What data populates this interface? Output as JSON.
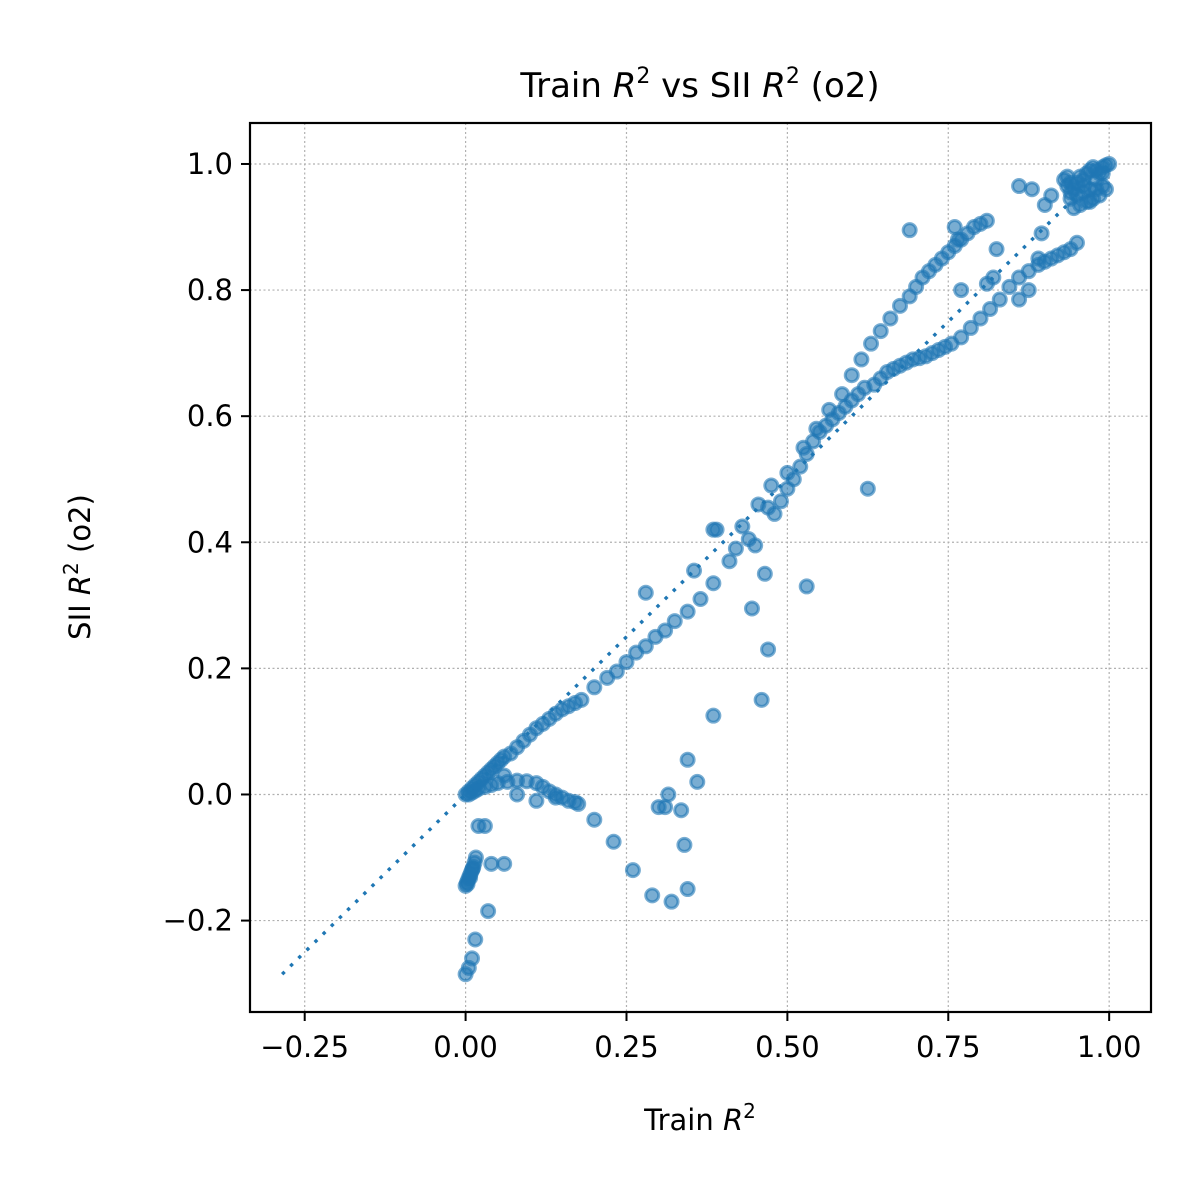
{
  "chart_data": {
    "type": "scatter",
    "title_prefix": "Train ",
    "title_var": "R",
    "title_sup": "2",
    "title_mid": " vs SII ",
    "title_suffix": " (o2)",
    "xlabel_prefix": "Train ",
    "xlabel_var": "R",
    "xlabel_sup": "2",
    "ylabel_prefix": "SII ",
    "ylabel_var": "R",
    "ylabel_sup": "2",
    "ylabel_suffix": " (o2)",
    "xlim": [
      -0.335,
      1.065
    ],
    "ylim": [
      -0.345,
      1.065
    ],
    "xticks": [
      -0.25,
      0.0,
      0.25,
      0.5,
      0.75,
      1.0
    ],
    "xtick_labels": [
      "−0.25",
      "0.00",
      "0.25",
      "0.50",
      "0.75",
      "1.00"
    ],
    "yticks": [
      -0.2,
      0.0,
      0.2,
      0.4,
      0.6,
      0.8,
      1.0
    ],
    "ytick_labels": [
      "−0.2",
      "0.0",
      "0.2",
      "0.4",
      "0.6",
      "0.8",
      "1.0"
    ],
    "grid": true,
    "reference_line": {
      "x": [
        -0.285,
        1.0
      ],
      "y": [
        -0.285,
        1.0
      ]
    },
    "color": "#1f77b4",
    "series": [
      {
        "x": [
          0.0,
          0.005,
          0.01,
          0.015,
          0.02,
          0.025,
          0.03,
          0.035,
          0.04,
          0.045,
          0.05,
          0.055,
          0.06,
          0.07,
          0.08,
          0.09,
          0.1,
          0.11,
          0.12,
          0.13,
          0.14,
          0.15,
          0.16,
          0.17,
          0.18,
          0.2,
          0.22,
          0.235,
          0.25,
          0.265,
          0.28,
          0.295,
          0.31,
          0.325,
          0.345,
          0.365,
          0.385,
          0.41,
          0.44,
          0.47,
          0.5,
          0.525,
          0.545,
          0.565,
          0.585,
          0.6,
          0.615,
          0.63,
          0.645,
          0.66,
          0.675,
          0.69,
          0.7,
          0.71,
          0.72,
          0.73,
          0.74,
          0.75,
          0.76,
          0.77,
          0.78,
          0.79,
          0.8,
          0.81,
          0.635,
          0.645,
          0.655,
          0.665,
          0.675,
          0.685,
          0.695,
          0.705,
          0.715,
          0.725,
          0.735,
          0.745,
          0.755,
          0.77,
          0.785,
          0.8,
          0.815,
          0.83,
          0.845,
          0.86,
          0.875,
          0.89,
          0.9,
          0.91,
          0.92,
          0.93,
          0.94,
          0.95,
          0.005,
          0.01,
          0.015,
          0.02,
          0.03,
          0.04,
          0.05,
          0.065,
          0.08,
          0.095,
          0.11,
          0.12,
          0.13,
          0.14,
          0.15,
          0.16,
          0.17,
          0.175,
          0.48,
          0.49,
          0.5,
          0.51,
          0.52,
          0.53,
          0.54,
          0.55,
          0.56,
          0.57,
          0.58,
          0.59,
          0.6,
          0.61,
          0.62,
          0.02,
          0.04,
          0.06,
          0.08,
          0.11,
          0.14,
          0.2,
          0.23,
          0.26,
          0.29,
          0.32,
          0.345,
          0.0,
          0.002,
          0.004,
          0.006,
          0.008,
          0.01,
          0.012,
          0.014,
          0.016,
          0.003,
          0.007,
          0.011,
          0.0,
          0.005,
          0.01,
          0.015,
          0.035,
          0.06,
          0.03,
          0.28,
          0.39,
          0.385,
          0.43,
          0.455,
          0.46,
          0.475,
          0.53,
          0.625,
          0.42,
          0.445,
          0.465,
          0.47,
          0.45,
          0.385,
          0.355,
          0.36,
          0.345,
          0.315,
          0.3,
          0.31,
          0.335,
          0.34,
          0.69,
          0.765,
          0.76,
          0.77,
          0.81,
          0.825,
          0.86,
          0.875,
          0.89,
          0.895,
          0.9,
          0.88,
          0.91,
          0.86,
          0.82,
          0.93,
          0.935,
          0.94,
          0.945,
          0.95,
          0.955,
          0.96,
          0.965,
          0.97,
          0.975,
          0.98,
          0.985,
          0.99,
          0.995,
          1.0,
          0.94,
          0.95,
          0.96,
          0.97,
          0.98,
          0.99,
          0.945,
          0.955,
          0.965,
          0.975,
          0.985,
          0.995,
          0.935,
          0.94,
          0.96,
          0.98,
          0.99,
          0.97
        ],
        "y": [
          0.0,
          0.005,
          0.01,
          0.015,
          0.02,
          0.025,
          0.03,
          0.035,
          0.04,
          0.045,
          0.05,
          0.055,
          0.06,
          0.065,
          0.075,
          0.085,
          0.095,
          0.105,
          0.112,
          0.12,
          0.128,
          0.135,
          0.14,
          0.145,
          0.15,
          0.17,
          0.185,
          0.195,
          0.21,
          0.225,
          0.235,
          0.25,
          0.26,
          0.275,
          0.29,
          0.31,
          0.335,
          0.37,
          0.405,
          0.455,
          0.51,
          0.55,
          0.58,
          0.61,
          0.635,
          0.665,
          0.69,
          0.715,
          0.735,
          0.755,
          0.775,
          0.79,
          0.805,
          0.82,
          0.83,
          0.84,
          0.85,
          0.86,
          0.87,
          0.88,
          0.89,
          0.9,
          0.905,
          0.91,
          0.65,
          0.66,
          0.67,
          0.675,
          0.68,
          0.685,
          0.69,
          0.692,
          0.695,
          0.7,
          0.705,
          0.71,
          0.715,
          0.725,
          0.74,
          0.755,
          0.77,
          0.785,
          0.805,
          0.82,
          0.83,
          0.84,
          0.845,
          0.85,
          0.855,
          0.86,
          0.865,
          0.875,
          0.0,
          0.003,
          0.006,
          0.009,
          0.012,
          0.015,
          0.018,
          0.02,
          0.022,
          0.021,
          0.018,
          0.012,
          0.005,
          0.0,
          -0.005,
          -0.01,
          -0.012,
          -0.015,
          0.445,
          0.465,
          0.485,
          0.5,
          0.52,
          0.54,
          0.56,
          0.575,
          0.585,
          0.595,
          0.605,
          0.615,
          0.625,
          0.635,
          0.645,
          -0.05,
          -0.11,
          0.03,
          0.0,
          -0.01,
          -0.005,
          -0.04,
          -0.075,
          -0.12,
          -0.16,
          -0.17,
          -0.15,
          -0.145,
          -0.14,
          -0.135,
          -0.13,
          -0.125,
          -0.12,
          -0.115,
          -0.108,
          -0.1,
          -0.142,
          -0.132,
          -0.118,
          -0.285,
          -0.275,
          -0.26,
          -0.23,
          -0.185,
          -0.11,
          -0.05,
          0.32,
          0.42,
          0.125,
          0.425,
          0.46,
          0.15,
          0.49,
          0.33,
          0.485,
          0.39,
          0.295,
          0.35,
          0.23,
          0.395,
          0.42,
          0.355,
          0.02,
          0.055,
          0.0,
          -0.02,
          -0.02,
          -0.025,
          -0.08,
          0.895,
          0.88,
          0.9,
          0.8,
          0.81,
          0.865,
          0.785,
          0.8,
          0.85,
          0.89,
          0.935,
          0.96,
          0.95,
          0.965,
          0.82,
          0.975,
          0.965,
          0.955,
          0.96,
          0.97,
          0.98,
          0.975,
          0.985,
          0.99,
          0.995,
          0.99,
          0.985,
          0.995,
          0.998,
          1.0,
          0.945,
          0.95,
          0.955,
          0.94,
          0.96,
          0.965,
          0.93,
          0.935,
          0.94,
          0.945,
          0.95,
          0.96,
          0.98,
          0.97,
          0.965,
          0.975,
          0.985,
          0.96
        ]
      }
    ]
  }
}
